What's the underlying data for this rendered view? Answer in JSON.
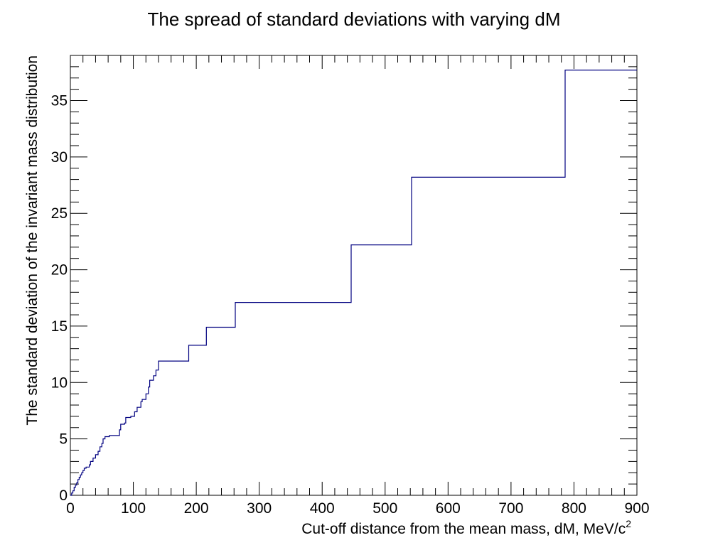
{
  "chart_data": {
    "type": "line",
    "step": true,
    "title": "The spread of standard deviations with varying dM",
    "xlabel": "Cut-off distance from the mean mass, dM, MeV/c",
    "xlabel_sup": "2",
    "ylabel": "The standard deviation of the invariant mass distribution",
    "xlim": [
      0,
      900
    ],
    "ylim": [
      0,
      39
    ],
    "x_ticks": [
      0,
      100,
      200,
      300,
      400,
      500,
      600,
      700,
      800,
      900
    ],
    "y_ticks": [
      0,
      5,
      10,
      15,
      20,
      25,
      30,
      35
    ],
    "line_color": "#000080",
    "grid": false,
    "legend": "none",
    "series": [
      {
        "x": [
          0,
          2,
          4,
          6,
          8,
          10,
          12,
          14,
          16,
          18,
          20,
          22,
          25,
          30,
          32,
          36,
          40,
          44,
          47,
          50,
          52,
          55,
          62,
          70,
          78,
          80,
          86,
          88,
          96,
          102,
          106,
          112,
          114,
          120,
          124,
          126,
          130,
          132,
          136,
          140,
          166,
          186,
          188,
          200,
          216,
          240,
          262,
          300,
          446,
          500,
          542,
          700,
          786,
          900
        ],
        "y": [
          0,
          0.2,
          0.4,
          0.7,
          0.9,
          1.1,
          1.4,
          1.6,
          1.8,
          2.0,
          2.2,
          2.4,
          2.5,
          2.7,
          3.0,
          3.3,
          3.6,
          3.9,
          4.3,
          4.6,
          5.0,
          5.2,
          5.3,
          5.3,
          5.8,
          6.3,
          6.4,
          6.9,
          7.0,
          7.4,
          7.8,
          8.3,
          8.5,
          9.0,
          9.6,
          10.2,
          10.2,
          10.6,
          11.1,
          11.9,
          11.9,
          11.9,
          13.3,
          13.3,
          14.9,
          14.9,
          17.1,
          17.1,
          22.2,
          22.2,
          28.2,
          28.2,
          37.7,
          37.7
        ]
      }
    ]
  }
}
